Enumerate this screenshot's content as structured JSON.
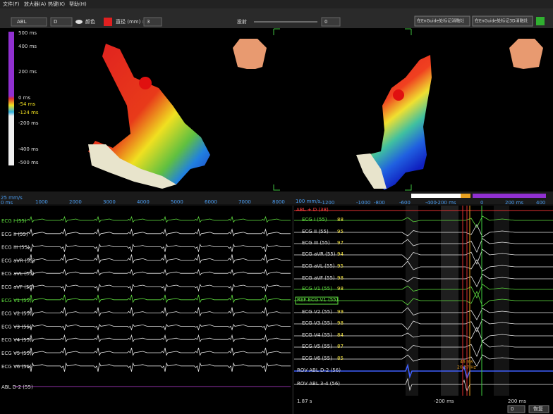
{
  "menu": [
    "文件(F)",
    "放大器(A)",
    "热键(K)",
    "帮助(H)"
  ],
  "toolbar": {
    "map_select": "ABL",
    "point_select": "D",
    "color_label": "颜色",
    "diameter_label": "直径 (mm) :",
    "diameter": "3",
    "projection_label": "投射",
    "projection": "0",
    "buttons": [
      "在EnGuide处标记消融灶",
      "在EnGuide处标记3D消融灶"
    ]
  },
  "colorbar": {
    "labels": [
      "500 ms",
      "400 ms",
      "200 ms",
      "0 ms",
      "-54 ms",
      "-124 ms",
      "-200 ms",
      "-400 ms",
      "-500 ms"
    ]
  },
  "left_panel": {
    "speed": "25 mm/s",
    "start": "0 ms",
    "ticks": [
      "1000",
      "2000",
      "3000",
      "4000",
      "5000",
      "6000",
      "7000",
      "8000"
    ],
    "channels": [
      "ECG I (55)",
      "ECG II (55)",
      "ECG III (55)",
      "ECG aVR (55)",
      "ECG aVL (55)",
      "ECG aVF (55)",
      "ECG V1 (55)",
      "ECG V2 (55)",
      "ECG V3 (55)",
      "ECG V4 (55)",
      "ECG V5 (55)",
      "ECG V6 (55)",
      "ABL  D-2 (55)"
    ]
  },
  "right_panel": {
    "speed": "100 mm/s",
    "ticks": [
      "-1200",
      "-1000",
      "-800",
      "-600",
      "-400",
      "-200 ms",
      "0",
      "200 ms",
      "400"
    ],
    "top_channel": "ABL + D (38)",
    "channels": [
      {
        "label": "ECG I (55)",
        "value": "88"
      },
      {
        "label": "ECG II (55)",
        "value": "95"
      },
      {
        "label": "ECG III (55)",
        "value": "97"
      },
      {
        "label": "ECG aVR (55)",
        "value": "94"
      },
      {
        "label": "ECG aVL (55)",
        "value": "95"
      },
      {
        "label": "ECG aVF (55)",
        "value": "98"
      },
      {
        "label": "ECG V1 (55)",
        "value": "98"
      },
      {
        "label": "REF ECG V1 (55)"
      },
      {
        "label": "ECG V2 (55)",
        "value": "99"
      },
      {
        "label": "ECG V3 (55)",
        "value": "98"
      },
      {
        "label": "ECG V4 (55)",
        "value": "84"
      },
      {
        "label": "ECG V5 (55)",
        "value": "87"
      },
      {
        "label": "ECG V6 (55)",
        "value": "85"
      },
      {
        "label": "ROV ABL   D-2 (56)"
      },
      {
        "label": "ROV ABL   3-4 (56)"
      }
    ],
    "annotation": "46 ms",
    "annotation2": "20.37 Hz",
    "elapsed": "1.87 s",
    "window_start": "-200 ms",
    "window_end": "200 ms",
    "zoom": "0",
    "restore": "恢复"
  }
}
